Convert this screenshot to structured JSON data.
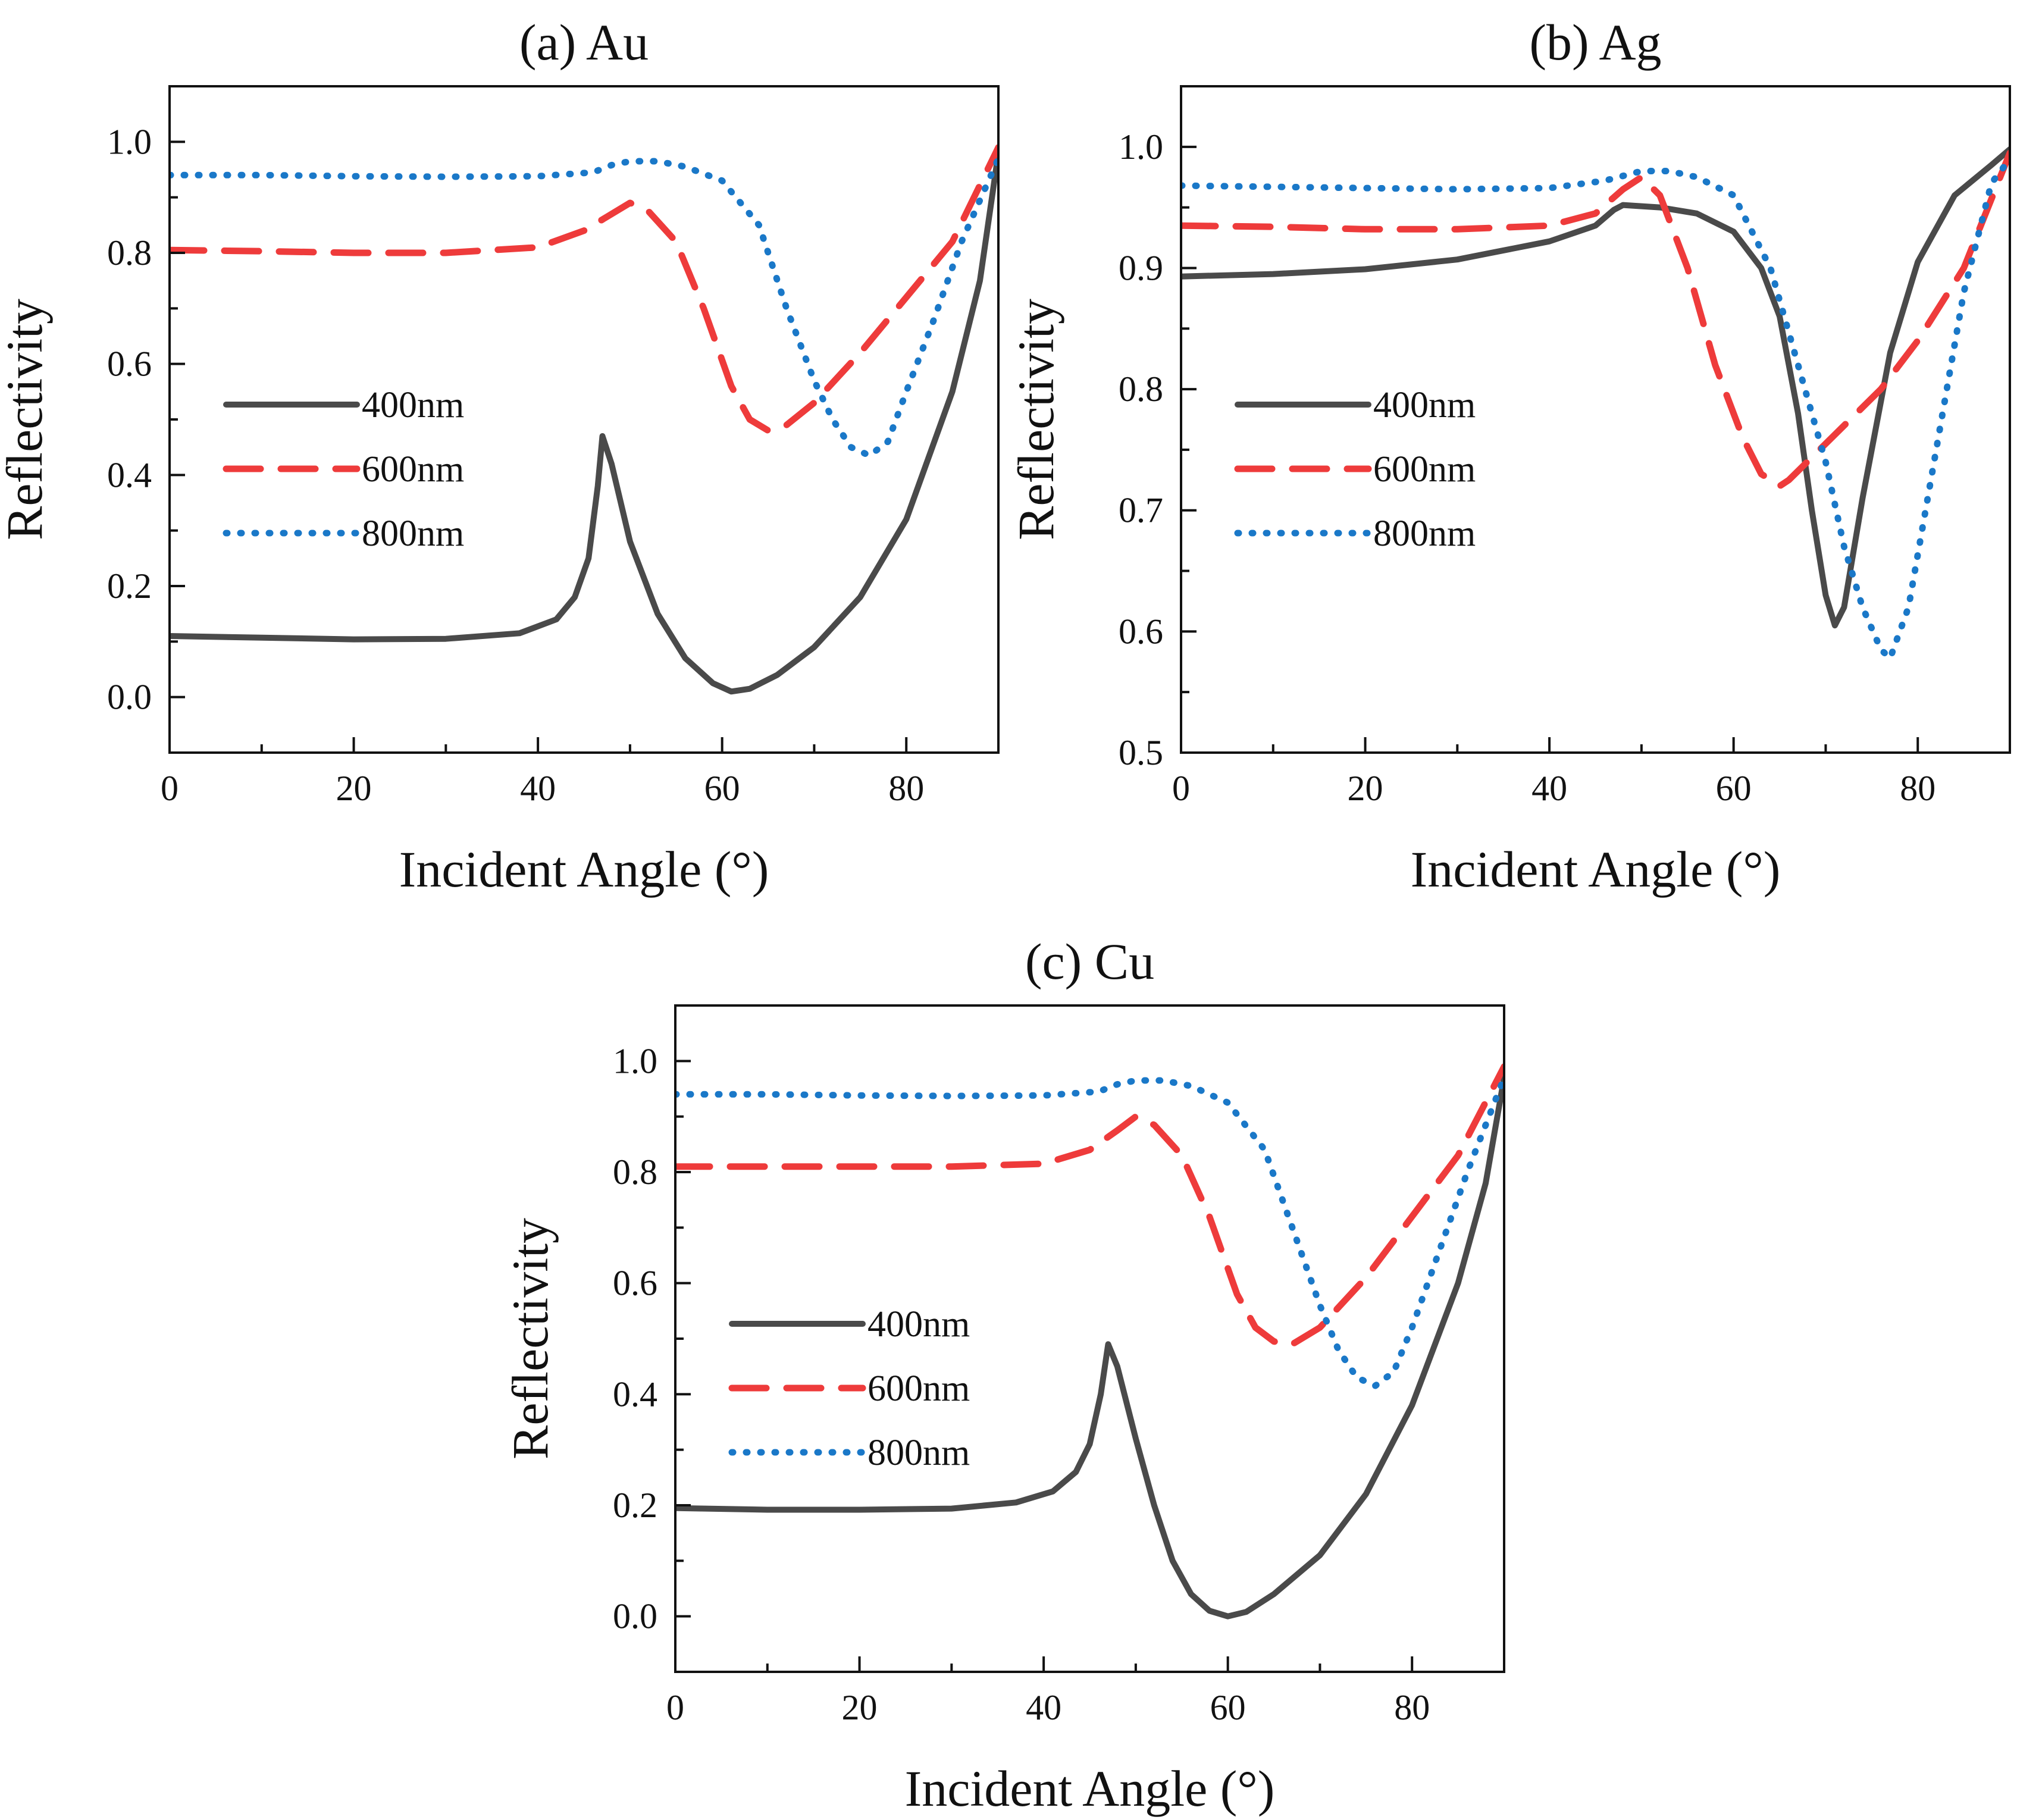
{
  "chart_data": [
    {
      "type": "line",
      "title": "(a) Au",
      "xlabel": "Incident Angle (°)",
      "ylabel": "Reflectivity",
      "xlim": [
        0,
        90
      ],
      "ylim": [
        -0.1,
        1.1
      ],
      "xticks": [
        0,
        20,
        40,
        60,
        80
      ],
      "yticks": [
        0.0,
        0.2,
        0.4,
        0.6,
        0.8,
        1.0
      ],
      "ytick_labels": [
        "0.0",
        "0.2",
        "0.4",
        "0.6",
        "0.8",
        "1.0"
      ],
      "legend_position": "left",
      "series": [
        {
          "name": "400nm",
          "color": "#4a4a4a",
          "style": "solid",
          "x": [
            0,
            10,
            20,
            30,
            38,
            42,
            44,
            45.5,
            46.5,
            47,
            48,
            50,
            53,
            56,
            59,
            61,
            63,
            66,
            70,
            75,
            80,
            85,
            88,
            90
          ],
          "y": [
            0.11,
            0.107,
            0.104,
            0.105,
            0.115,
            0.14,
            0.18,
            0.25,
            0.38,
            0.47,
            0.42,
            0.28,
            0.15,
            0.07,
            0.025,
            0.01,
            0.015,
            0.04,
            0.09,
            0.18,
            0.32,
            0.55,
            0.75,
            0.98
          ]
        },
        {
          "name": "600nm",
          "color": "#ee3b3b",
          "style": "dashed",
          "x": [
            0,
            10,
            20,
            30,
            40,
            45,
            48,
            50,
            52,
            55,
            58,
            61,
            63,
            65,
            67,
            70,
            75,
            80,
            85,
            90
          ],
          "y": [
            0.805,
            0.803,
            0.8,
            0.8,
            0.81,
            0.84,
            0.87,
            0.89,
            0.875,
            0.82,
            0.7,
            0.56,
            0.5,
            0.48,
            0.49,
            0.53,
            0.62,
            0.72,
            0.82,
            0.99
          ]
        },
        {
          "name": "800nm",
          "color": "#1a78c8",
          "style": "dotted",
          "x": [
            0,
            10,
            20,
            30,
            40,
            46,
            48,
            50,
            53,
            56,
            60,
            64,
            67,
            70,
            72,
            74,
            76,
            78,
            80,
            83,
            86,
            90
          ],
          "y": [
            0.94,
            0.94,
            0.938,
            0.937,
            0.938,
            0.945,
            0.958,
            0.965,
            0.965,
            0.955,
            0.93,
            0.85,
            0.7,
            0.57,
            0.5,
            0.45,
            0.435,
            0.46,
            0.55,
            0.68,
            0.82,
            0.97
          ]
        }
      ]
    },
    {
      "type": "line",
      "title": "(b) Ag",
      "xlabel": "Incident Angle (°)",
      "ylabel": "Reflectivity",
      "xlim": [
        0,
        90
      ],
      "ylim": [
        0.5,
        1.05
      ],
      "xticks": [
        0,
        20,
        40,
        60,
        80
      ],
      "yticks": [
        0.5,
        0.6,
        0.7,
        0.8,
        0.9,
        1.0
      ],
      "ytick_labels": [
        "0.5",
        "0.6",
        "0.7",
        "0.8",
        "0.9",
        "1.0"
      ],
      "legend_position": "left",
      "series": [
        {
          "name": "400nm",
          "color": "#4a4a4a",
          "style": "solid",
          "x": [
            0,
            10,
            20,
            30,
            40,
            45,
            47,
            48,
            52,
            56,
            60,
            63,
            65,
            67,
            68.5,
            70,
            71,
            72,
            74,
            77,
            80,
            84,
            88,
            90
          ],
          "y": [
            0.893,
            0.895,
            0.899,
            0.907,
            0.922,
            0.935,
            0.948,
            0.952,
            0.95,
            0.945,
            0.93,
            0.9,
            0.86,
            0.78,
            0.7,
            0.63,
            0.605,
            0.62,
            0.71,
            0.83,
            0.905,
            0.96,
            0.985,
            0.998
          ]
        },
        {
          "name": "600nm",
          "color": "#ee3b3b",
          "style": "dashed",
          "x": [
            0,
            10,
            20,
            30,
            40,
            45,
            48,
            50,
            52,
            55,
            58,
            61,
            63,
            65,
            66,
            68,
            72,
            76,
            80,
            85,
            90
          ],
          "y": [
            0.935,
            0.934,
            0.932,
            0.932,
            0.935,
            0.945,
            0.965,
            0.975,
            0.96,
            0.9,
            0.82,
            0.76,
            0.73,
            0.72,
            0.725,
            0.74,
            0.77,
            0.8,
            0.84,
            0.9,
            0.995
          ]
        },
        {
          "name": "800nm",
          "color": "#1a78c8",
          "style": "dotted",
          "x": [
            0,
            10,
            20,
            30,
            40,
            46,
            50,
            53,
            56,
            60,
            64,
            67,
            70,
            72,
            74,
            76,
            77,
            79,
            82,
            85,
            88,
            90
          ],
          "y": [
            0.968,
            0.967,
            0.966,
            0.965,
            0.966,
            0.972,
            0.98,
            0.98,
            0.975,
            0.96,
            0.9,
            0.82,
            0.74,
            0.67,
            0.62,
            0.585,
            0.578,
            0.62,
            0.75,
            0.88,
            0.97,
            0.99
          ]
        }
      ]
    },
    {
      "type": "line",
      "title": "(c) Cu",
      "xlabel": "Incident Angle (°)",
      "ylabel": "Reflectivity",
      "xlim": [
        0,
        90
      ],
      "ylim": [
        -0.1,
        1.1
      ],
      "xticks": [
        0,
        20,
        40,
        60,
        80
      ],
      "yticks": [
        0.0,
        0.2,
        0.4,
        0.6,
        0.8,
        1.0
      ],
      "ytick_labels": [
        "0.0",
        "0.2",
        "0.4",
        "0.6",
        "0.8",
        "1.0"
      ],
      "legend_position": "left",
      "series": [
        {
          "name": "400nm",
          "color": "#4a4a4a",
          "style": "solid",
          "x": [
            0,
            10,
            20,
            30,
            37,
            41,
            43.5,
            45,
            46.2,
            47,
            48,
            50,
            52,
            54,
            56,
            58,
            60,
            62,
            65,
            70,
            75,
            80,
            85,
            88,
            90
          ],
          "y": [
            0.195,
            0.192,
            0.192,
            0.194,
            0.205,
            0.225,
            0.26,
            0.31,
            0.4,
            0.49,
            0.45,
            0.32,
            0.2,
            0.1,
            0.04,
            0.01,
            0.0,
            0.008,
            0.04,
            0.11,
            0.22,
            0.38,
            0.6,
            0.78,
            0.97
          ]
        },
        {
          "name": "600nm",
          "color": "#ee3b3b",
          "style": "dashed",
          "x": [
            0,
            10,
            20,
            30,
            40,
            45,
            48,
            50,
            52,
            55,
            58,
            61,
            63,
            65,
            67,
            70,
            75,
            80,
            85,
            90
          ],
          "y": [
            0.81,
            0.81,
            0.81,
            0.81,
            0.815,
            0.84,
            0.875,
            0.9,
            0.885,
            0.83,
            0.72,
            0.58,
            0.52,
            0.495,
            0.49,
            0.52,
            0.61,
            0.72,
            0.83,
            0.99
          ]
        },
        {
          "name": "800nm",
          "color": "#1a78c8",
          "style": "dotted",
          "x": [
            0,
            10,
            20,
            30,
            40,
            46,
            48,
            50,
            53,
            56,
            60,
            64,
            67,
            70,
            72,
            74,
            76,
            78,
            80,
            83,
            86,
            90
          ],
          "y": [
            0.94,
            0.94,
            0.938,
            0.937,
            0.938,
            0.945,
            0.958,
            0.965,
            0.965,
            0.955,
            0.925,
            0.84,
            0.7,
            0.56,
            0.48,
            0.43,
            0.415,
            0.44,
            0.52,
            0.66,
            0.8,
            0.97
          ]
        }
      ]
    }
  ]
}
